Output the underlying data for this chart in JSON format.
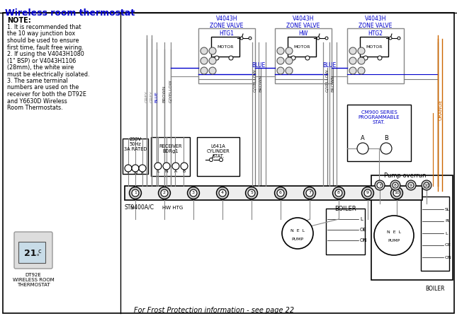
{
  "title": "Wireless room thermostat",
  "title_color": "#0000cc",
  "bg_color": "#ffffff",
  "border_color": "#000000",
  "note_title": "NOTE:",
  "note_lines": [
    "1. It is recommended that",
    "the 10 way junction box",
    "should be used to ensure",
    "first time, fault free wiring.",
    "2. If using the V4043H1080",
    "(1\" BSP) or V4043H1106",
    "(28mm), the white wire",
    "must be electrically isolated.",
    "3. The same terminal",
    "numbers are used on the",
    "receiver for both the DT92E",
    "and Y6630D Wireless",
    "Room Thermostats."
  ],
  "zone_valve_labels": [
    "V4043H\nZONE VALVE\nHTG1",
    "V4043H\nZONE VALVE\nHW",
    "V4043H\nZONE VALVE\nHTG2"
  ],
  "blue_color": "#0000cc",
  "orange_color": "#cc6600",
  "grey_color": "#888888",
  "line_color": "#555555",
  "mains_label": "230V\n50Hz\n3A RATED",
  "receiver_label": "RECEIVER\nBDRg1",
  "cylinder_stat_label": "L641A\nCYLINDER\nSTAT.",
  "cm900_label": "CM900 SERIES\nPROGRAMMABLE\nSTAT.",
  "pump_overrun_label": "Pump overrun",
  "st9400_label": "ST9400A/C",
  "hwhtg_label": "HW HTG",
  "boiler_label": "BOILER",
  "frost_text": "For Frost Protection information - see page 22",
  "dt92e_label": "DT92E\nWIRELESS ROOM\nTHERMOSTAT"
}
